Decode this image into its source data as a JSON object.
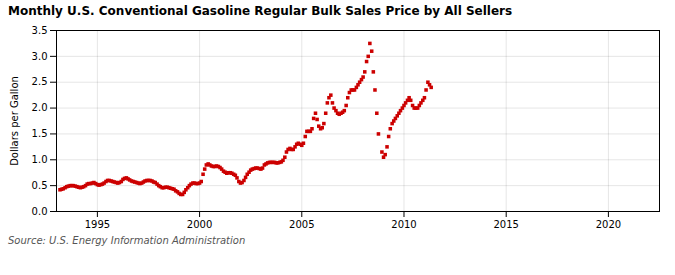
{
  "chart_data": {
    "type": "scatter",
    "title": "Monthly U.S. Conventional Gasoline Regular Bulk Sales Price by All Sellers",
    "ylabel": "Dollars per Gallon",
    "annotations": [
      "Source: U.S. Energy Information Administration"
    ],
    "color": "#CC0000",
    "marker": "square",
    "grid": true,
    "xlim": [
      1993.0,
      2022.5
    ],
    "ylim": [
      0.0,
      3.5
    ],
    "xticks": [
      1995,
      2000,
      2005,
      2010,
      2015,
      2020
    ],
    "yticks": [
      {
        "value": 0.0,
        "label": "0.0"
      },
      0.5,
      {
        "value": 1.0,
        "label": "1.0"
      },
      1.5,
      {
        "value": 2.0,
        "label": "2.0"
      },
      2.5,
      {
        "value": 3.0,
        "label": "3.0"
      },
      3.5
    ],
    "x": [
      1993.17,
      1993.25,
      1993.33,
      1993.42,
      1993.5,
      1993.58,
      1993.67,
      1993.75,
      1993.83,
      1993.92,
      1994.0,
      1994.08,
      1994.17,
      1994.25,
      1994.33,
      1994.42,
      1994.5,
      1994.58,
      1994.67,
      1994.75,
      1994.83,
      1994.92,
      1995.0,
      1995.08,
      1995.17,
      1995.25,
      1995.33,
      1995.42,
      1995.5,
      1995.58,
      1995.67,
      1995.75,
      1995.83,
      1995.92,
      1996.0,
      1996.08,
      1996.17,
      1996.25,
      1996.33,
      1996.42,
      1996.5,
      1996.58,
      1996.67,
      1996.75,
      1996.83,
      1996.92,
      1997.0,
      1997.08,
      1997.17,
      1997.25,
      1997.33,
      1997.42,
      1997.5,
      1997.58,
      1997.67,
      1997.75,
      1997.83,
      1997.92,
      1998.0,
      1998.08,
      1998.17,
      1998.25,
      1998.33,
      1998.42,
      1998.5,
      1998.58,
      1998.67,
      1998.75,
      1998.83,
      1998.92,
      1999.0,
      1999.08,
      1999.17,
      1999.25,
      1999.33,
      1999.42,
      1999.5,
      1999.58,
      1999.67,
      1999.75,
      1999.83,
      1999.92,
      2000.0,
      2000.08,
      2000.17,
      2000.25,
      2000.33,
      2000.42,
      2000.5,
      2000.58,
      2000.67,
      2000.75,
      2000.83,
      2000.92,
      2001.0,
      2001.08,
      2001.17,
      2001.25,
      2001.33,
      2001.42,
      2001.5,
      2001.58,
      2001.67,
      2001.75,
      2001.83,
      2001.92,
      2002.0,
      2002.08,
      2002.17,
      2002.25,
      2002.33,
      2002.42,
      2002.5,
      2002.58,
      2002.67,
      2002.75,
      2002.83,
      2002.92,
      2003.0,
      2003.08,
      2003.17,
      2003.25,
      2003.33,
      2003.42,
      2003.5,
      2003.58,
      2003.67,
      2003.75,
      2003.83,
      2003.92,
      2004.0,
      2004.08,
      2004.17,
      2004.25,
      2004.33,
      2004.42,
      2004.5,
      2004.58,
      2004.67,
      2004.75,
      2004.83,
      2004.92,
      2005.0,
      2005.08,
      2005.17,
      2005.25,
      2005.33,
      2005.42,
      2005.5,
      2005.58,
      2005.67,
      2005.75,
      2005.83,
      2005.92,
      2006.0,
      2006.08,
      2006.17,
      2006.25,
      2006.33,
      2006.42,
      2006.5,
      2006.58,
      2006.67,
      2006.75,
      2006.83,
      2006.92,
      2007.0,
      2007.08,
      2007.17,
      2007.25,
      2007.33,
      2007.42,
      2007.5,
      2007.58,
      2007.67,
      2007.75,
      2007.83,
      2007.92,
      2008.0,
      2008.08,
      2008.17,
      2008.25,
      2008.33,
      2008.42,
      2008.5,
      2008.58,
      2008.67,
      2008.75,
      2008.92,
      2009.0,
      2009.08,
      2009.17,
      2009.25,
      2009.33,
      2009.42,
      2009.5,
      2009.58,
      2009.67,
      2009.75,
      2009.83,
      2009.92,
      2010.0,
      2010.08,
      2010.17,
      2010.25,
      2010.33,
      2010.42,
      2010.5,
      2010.58,
      2010.67,
      2010.75,
      2010.83,
      2010.92,
      2011.0,
      2011.08,
      2011.17,
      2011.25,
      2011.33
    ],
    "values": [
      0.42,
      0.43,
      0.44,
      0.46,
      0.48,
      0.49,
      0.5,
      0.5,
      0.5,
      0.49,
      0.48,
      0.47,
      0.46,
      0.47,
      0.48,
      0.5,
      0.53,
      0.54,
      0.54,
      0.55,
      0.56,
      0.54,
      0.52,
      0.51,
      0.52,
      0.53,
      0.55,
      0.58,
      0.6,
      0.6,
      0.59,
      0.58,
      0.57,
      0.56,
      0.55,
      0.56,
      0.58,
      0.62,
      0.64,
      0.65,
      0.63,
      0.61,
      0.59,
      0.58,
      0.57,
      0.56,
      0.55,
      0.54,
      0.55,
      0.57,
      0.59,
      0.6,
      0.6,
      0.6,
      0.59,
      0.57,
      0.56,
      0.53,
      0.5,
      0.48,
      0.46,
      0.46,
      0.47,
      0.47,
      0.46,
      0.45,
      0.44,
      0.43,
      0.4,
      0.38,
      0.35,
      0.33,
      0.33,
      0.37,
      0.42,
      0.46,
      0.5,
      0.53,
      0.55,
      0.55,
      0.54,
      0.54,
      0.55,
      0.58,
      0.72,
      0.82,
      0.9,
      0.92,
      0.9,
      0.88,
      0.87,
      0.87,
      0.88,
      0.87,
      0.85,
      0.82,
      0.78,
      0.76,
      0.74,
      0.75,
      0.75,
      0.74,
      0.72,
      0.7,
      0.65,
      0.58,
      0.55,
      0.56,
      0.6,
      0.66,
      0.72,
      0.76,
      0.8,
      0.82,
      0.83,
      0.84,
      0.84,
      0.83,
      0.82,
      0.84,
      0.9,
      0.92,
      0.94,
      0.95,
      0.95,
      0.95,
      0.95,
      0.94,
      0.94,
      0.95,
      0.96,
      0.99,
      1.05,
      1.15,
      1.2,
      1.22,
      1.2,
      1.2,
      1.25,
      1.3,
      1.32,
      1.3,
      1.28,
      1.32,
      1.45,
      1.55,
      1.55,
      1.55,
      1.6,
      1.8,
      1.9,
      1.78,
      1.65,
      1.6,
      1.62,
      1.7,
      1.9,
      2.1,
      2.2,
      2.25,
      2.1,
      2.0,
      1.95,
      1.9,
      1.88,
      1.9,
      1.92,
      1.95,
      2.05,
      2.2,
      2.3,
      2.35,
      2.35,
      2.35,
      2.4,
      2.45,
      2.5,
      2.55,
      2.6,
      2.7,
      2.9,
      3.0,
      3.25,
      3.1,
      2.7,
      2.35,
      1.9,
      1.5,
      1.15,
      1.05,
      1.1,
      1.25,
      1.45,
      1.6,
      1.7,
      1.75,
      1.8,
      1.85,
      1.9,
      1.95,
      2.0,
      2.05,
      2.1,
      2.15,
      2.2,
      2.15,
      2.05,
      2.0,
      2.0,
      2.0,
      2.05,
      2.1,
      2.15,
      2.2,
      2.35,
      2.5,
      2.45,
      2.4
    ]
  }
}
